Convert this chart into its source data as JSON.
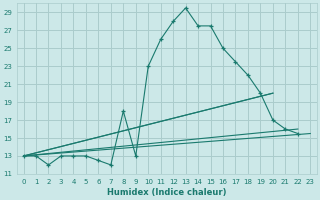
{
  "title": "",
  "xlabel": "Humidex (Indice chaleur)",
  "bg_color": "#cce8e8",
  "grid_color": "#aacccc",
  "line_color": "#1a7a6e",
  "xlim": [
    -0.5,
    23.5
  ],
  "ylim": [
    11,
    30
  ],
  "yticks": [
    11,
    13,
    15,
    17,
    19,
    21,
    23,
    25,
    27,
    29
  ],
  "xticks": [
    0,
    1,
    2,
    3,
    4,
    5,
    6,
    7,
    8,
    9,
    10,
    11,
    12,
    13,
    14,
    15,
    16,
    17,
    18,
    19,
    20,
    21,
    22,
    23
  ],
  "series_main": {
    "x": [
      0,
      1,
      2,
      3,
      4,
      5,
      6,
      7,
      8,
      9,
      10,
      11,
      12,
      13,
      14,
      15,
      16,
      17,
      18,
      19,
      20,
      21,
      22
    ],
    "y": [
      13,
      13,
      12,
      13,
      13,
      13,
      12.5,
      12,
      18,
      13,
      23,
      26,
      28,
      29.5,
      27.5,
      27.5,
      25,
      23.5,
      22,
      20,
      17,
      16,
      15.5
    ]
  },
  "fan_lines": [
    {
      "x": [
        0,
        20
      ],
      "y": [
        13,
        20
      ]
    },
    {
      "x": [
        0,
        20
      ],
      "y": [
        13,
        20
      ]
    },
    {
      "x": [
        0,
        22
      ],
      "y": [
        13,
        16
      ]
    },
    {
      "x": [
        0,
        23
      ],
      "y": [
        13,
        15.5
      ]
    }
  ]
}
